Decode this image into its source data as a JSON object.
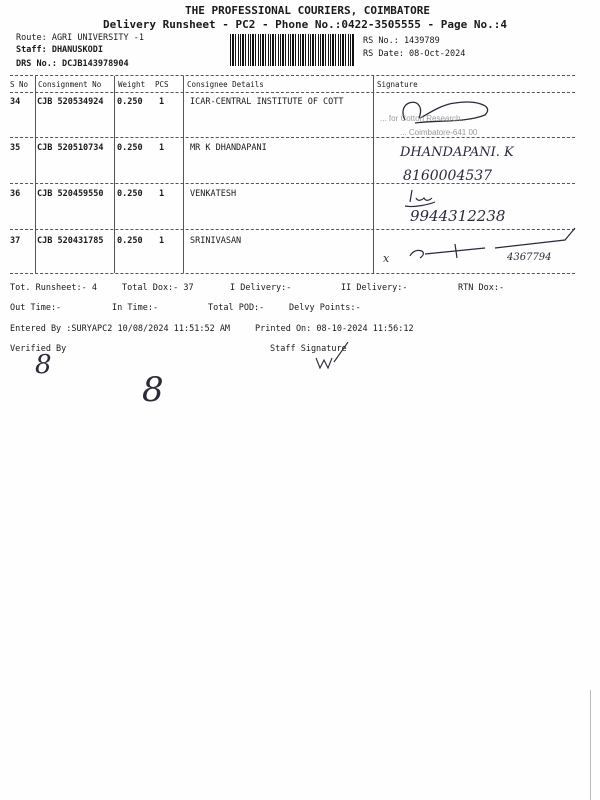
{
  "header": {
    "company": "THE PROFESSIONAL COURIERS, COIMBATORE",
    "subtitle": "Delivery Runsheet - PC2 - Phone No.:0422-3505555 - Page No.:4",
    "route": "Route: AGRI UNIVERSITY -1",
    "staff": "Staff: DHANUSKODI",
    "drs": "DRS No.: DCJB143978904",
    "rs_no": "RS No.: 1439789",
    "rs_date": "RS Date: 08-Oct-2024"
  },
  "table": {
    "columns": [
      "S No",
      "Consignment No",
      "Weight",
      "PCS",
      "Consignee Details",
      "Signature"
    ],
    "rows": [
      {
        "sno": "34",
        "consignment": "CJB 520534924",
        "weight": "0.250",
        "pcs": "1",
        "consignee": "ICAR-CENTRAL INSTITUTE OF COTT"
      },
      {
        "sno": "35",
        "consignment": "CJB 520510734",
        "weight": "0.250",
        "pcs": "1",
        "consignee": "MR K DHANDAPANI"
      },
      {
        "sno": "36",
        "consignment": "CJB 520459550",
        "weight": "0.250",
        "pcs": "1",
        "consignee": "VENKATESH"
      },
      {
        "sno": "37",
        "consignment": "CJB 520431785",
        "weight": "0.250",
        "pcs": "1",
        "consignee": "SRINIVASAN"
      }
    ]
  },
  "handwriting": {
    "stamp_line1": "... for Cotton Research",
    "stamp_line2": "... Coimbatore-641 00",
    "sig35_name": "DHANDAPANI. K",
    "sig35_phone": "8160004537",
    "sig36_phone": "9944312238",
    "sig37_mark": "x",
    "sig37_number": "4367794",
    "verified_mark": "8"
  },
  "summary": {
    "tot_runsheet": "Tot. Runsheet:- 4",
    "total_dox": "Total Dox:-   37",
    "i_delivery": "I Delivery:-",
    "ii_delivery": "II Delivery:-",
    "rtn_dox": "RTN Dox:-",
    "out_time": "Out Time:-",
    "in_time": "In Time:-",
    "total_pod": "Total POD:-",
    "delvy_points": "Delvy Points:-",
    "entered_by": "Entered By :SURYAPC2 10/08/2024 11:51:52 AM",
    "printed_on": "Printed On: 08-10-2024 11:56:12",
    "verified_by": "Verified By",
    "staff_signature": "Staff Signature"
  }
}
